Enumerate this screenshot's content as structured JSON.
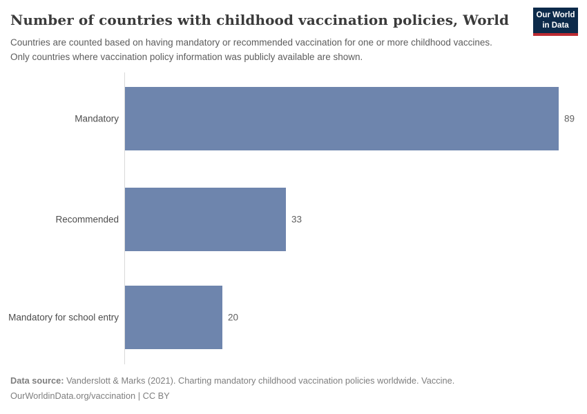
{
  "header": {
    "title": "Number of countries with childhood vaccination policies, World",
    "subtitle": "Countries are counted based on having mandatory or recommended vaccination for one or more childhood vaccines. Only countries where vaccination policy information was publicly available are shown.",
    "logo": {
      "line1": "Our World",
      "line2": "in Data",
      "bg_color": "#0c2a4a",
      "stripe_color": "#bc2b32"
    }
  },
  "chart_data": {
    "type": "bar",
    "orientation": "horizontal",
    "title": "Number of countries with childhood vaccination policies, World",
    "categories": [
      "Mandatory",
      "Recommended",
      "Mandatory for school entry"
    ],
    "values": [
      89,
      33,
      20
    ],
    "xlim": [
      0,
      89
    ],
    "grid": false,
    "value_labels_shown": true,
    "bar_color": "#6e85ad",
    "axis_color": "#d9d9d9"
  },
  "footer": {
    "source_label": "Data source:",
    "source_text": "Vanderslott & Marks (2021). Charting mandatory childhood vaccination policies worldwide. Vaccine.",
    "license_line": "OurWorldinData.org/vaccination | CC BY"
  }
}
